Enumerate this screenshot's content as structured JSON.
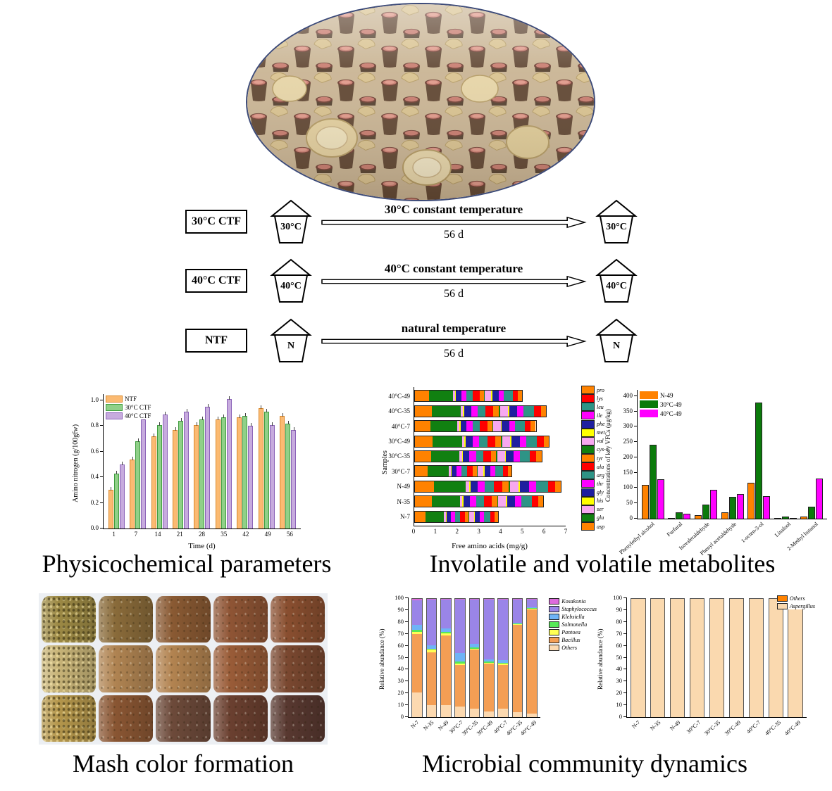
{
  "flow": {
    "rows": [
      {
        "label": "30°C CTF",
        "jar_start": "30°C",
        "arrow_top": "30°C constant temperature",
        "arrow_bottom": "56 d",
        "jar_end": "30°C"
      },
      {
        "label": "40°C CTF",
        "jar_start": "40°C",
        "arrow_top": "40°C constant temperature",
        "arrow_bottom": "56 d",
        "jar_end": "40°C"
      },
      {
        "label": "NTF",
        "jar_start": "N",
        "arrow_top": "natural temperature",
        "arrow_bottom": "56 d",
        "jar_end": "N"
      }
    ]
  },
  "sections": {
    "physicochemical": "Physicochemical parameters",
    "metabolites": "Involatile and volatile metabolites",
    "mash": "Mash color formation",
    "microbial": "Microbial community dynamics"
  },
  "mash_photos": {
    "rows": [
      [
        "#9d8a45",
        "#8a6b3a",
        "#8a5a33",
        "#8f5535",
        "#8a4f30"
      ],
      [
        "#c8b478",
        "#b08452",
        "#b28350",
        "#9a5c38",
        "#7a4830"
      ],
      [
        "#b5974c",
        "#8a5633",
        "#6d4a3a",
        "#6b4030",
        "#583830"
      ]
    ]
  },
  "chart_data": [
    {
      "id": "amino_nitrogen",
      "type": "bar",
      "title": "",
      "xlabel": "Time (d)",
      "ylabel": "Amino nitrogen (g/100gfw)",
      "ylim": [
        0,
        1.05
      ],
      "yticks": [
        "0.0",
        "0.2",
        "0.4",
        "0.6",
        "0.8",
        "1.0"
      ],
      "categories": [
        "1",
        "7",
        "14",
        "21",
        "28",
        "35",
        "42",
        "49",
        "56"
      ],
      "whiskers": true,
      "legend_position": "top-left",
      "series": [
        {
          "name": "NTF",
          "color": "#FBBA72",
          "border": "#D9882B",
          "values": [
            0.3,
            0.54,
            0.72,
            0.77,
            0.81,
            0.85,
            0.87,
            0.94,
            0.88
          ]
        },
        {
          "name": "30°C CTF",
          "color": "#90D088",
          "border": "#3F9E3F",
          "values": [
            0.43,
            0.68,
            0.81,
            0.84,
            0.85,
            0.87,
            0.88,
            0.91,
            0.82
          ]
        },
        {
          "name": "40°C CTF",
          "color": "#C7ABDE",
          "border": "#8B63B8",
          "values": [
            0.5,
            0.85,
            0.89,
            0.91,
            0.95,
            1.01,
            0.8,
            0.81,
            0.77
          ]
        }
      ]
    },
    {
      "id": "free_amino_acids",
      "type": "hstacked_bar",
      "title": "",
      "xlabel": "Free amino acids (mg/g)",
      "ylabel": "Samples",
      "xlim": [
        0,
        7
      ],
      "xticks": [
        "0",
        "1",
        "2",
        "3",
        "4",
        "5",
        "6",
        "7"
      ],
      "categories": [
        "40°C-49",
        "40°C-35",
        "40°C-7",
        "30°C-49",
        "30°C-35",
        "30°C-7",
        "N-49",
        "N-35",
        "N-7"
      ],
      "components": [
        {
          "name": "asp",
          "color": "#FF8200"
        },
        {
          "name": "glu",
          "color": "#118011"
        },
        {
          "name": "ser",
          "color": "#F7A8F0"
        },
        {
          "name": "his",
          "color": "#FFFF00"
        },
        {
          "name": "gly",
          "color": "#1F1F9F"
        },
        {
          "name": "thr",
          "color": "#FF00FF"
        },
        {
          "name": "arg",
          "color": "#2E9486"
        },
        {
          "name": "ala",
          "color": "#FF0000"
        },
        {
          "name": "tyr",
          "color": "#FF8200"
        },
        {
          "name": "cys-s",
          "color": "#118011"
        },
        {
          "name": "val",
          "color": "#F7A8F0"
        },
        {
          "name": "met",
          "color": "#FFFF00"
        },
        {
          "name": "phe",
          "color": "#1F1F9F"
        },
        {
          "name": "ile",
          "color": "#FF00FF"
        },
        {
          "name": "leu",
          "color": "#2E9486"
        },
        {
          "name": "lys",
          "color": "#FF0000"
        },
        {
          "name": "pro",
          "color": "#FF8200"
        }
      ],
      "rows": [
        [
          0.66,
          1.11,
          0.1,
          0.05,
          0.25,
          0.25,
          0.3,
          0.3,
          0.2,
          0.05,
          0.3,
          0.05,
          0.3,
          0.25,
          0.4,
          0.25,
          0.2
        ],
        [
          0.79,
          1.34,
          0.12,
          0.06,
          0.31,
          0.31,
          0.37,
          0.37,
          0.24,
          0.06,
          0.37,
          0.06,
          0.37,
          0.31,
          0.49,
          0.31,
          0.24
        ],
        [
          0.73,
          1.24,
          0.11,
          0.06,
          0.28,
          0.28,
          0.34,
          0.34,
          0.23,
          0.06,
          0.34,
          0.06,
          0.34,
          0.28,
          0.45,
          0.28,
          0.23
        ],
        [
          0.81,
          1.38,
          0.13,
          0.06,
          0.31,
          0.31,
          0.38,
          0.38,
          0.25,
          0.06,
          0.38,
          0.06,
          0.38,
          0.31,
          0.5,
          0.31,
          0.25
        ],
        [
          0.77,
          1.3,
          0.12,
          0.06,
          0.3,
          0.3,
          0.35,
          0.35,
          0.24,
          0.06,
          0.35,
          0.06,
          0.35,
          0.3,
          0.47,
          0.3,
          0.24
        ],
        [
          0.59,
          0.99,
          0.09,
          0.05,
          0.23,
          0.23,
          0.27,
          0.27,
          0.18,
          0.05,
          0.27,
          0.05,
          0.27,
          0.23,
          0.36,
          0.23,
          0.18
        ],
        [
          0.88,
          1.5,
          0.14,
          0.07,
          0.34,
          0.34,
          0.41,
          0.41,
          0.27,
          0.07,
          0.41,
          0.07,
          0.41,
          0.34,
          0.54,
          0.34,
          0.27
        ],
        [
          0.78,
          1.32,
          0.12,
          0.06,
          0.3,
          0.3,
          0.36,
          0.36,
          0.24,
          0.06,
          0.36,
          0.06,
          0.36,
          0.3,
          0.48,
          0.3,
          0.24
        ],
        [
          0.51,
          0.86,
          0.08,
          0.04,
          0.2,
          0.2,
          0.23,
          0.23,
          0.16,
          0.04,
          0.23,
          0.04,
          0.23,
          0.2,
          0.31,
          0.2,
          0.16
        ]
      ]
    },
    {
      "id": "vfc",
      "type": "bar",
      "title": "",
      "xlabel": "",
      "ylabel": "Concentrations of key VFCs (μg/kg)",
      "ylim": [
        0,
        420
      ],
      "yticks": [
        "0",
        "50",
        "100",
        "150",
        "200",
        "250",
        "300",
        "350",
        "400"
      ],
      "categories": [
        "Phenylethyl alcohol",
        "Furfural",
        "Isovaleraldehyde",
        "Phenyl acetaldehyde",
        "1-octen-3-ol",
        "Linalool",
        "2-Methyl butanol"
      ],
      "legend_position": "top-left",
      "series": [
        {
          "name": "N-49",
          "color": "#FF8200",
          "values": [
            110,
            3,
            12,
            21,
            118,
            3,
            8
          ]
        },
        {
          "name": "30°C-49",
          "color": "#0B7A0B",
          "values": [
            240,
            20,
            46,
            71,
            378,
            7,
            39
          ]
        },
        {
          "name": "40°C-49",
          "color": "#FF00FF",
          "values": [
            128,
            15,
            95,
            81,
            73,
            3,
            132
          ]
        }
      ]
    },
    {
      "id": "bacteria",
      "type": "stacked_bar",
      "title": "",
      "xlabel": "",
      "ylabel": "Relative abundance (%)",
      "ylim": [
        0,
        100
      ],
      "yticks": [
        "0",
        "10",
        "20",
        "30",
        "40",
        "50",
        "60",
        "70",
        "80",
        "90",
        "100"
      ],
      "categories": [
        "N-7",
        "N-35",
        "N-49",
        "30°C-7",
        "30°C-35",
        "30°C-49",
        "40°C-7",
        "40°C-35",
        "40°C-49"
      ],
      "legend_reverse": true,
      "series": [
        {
          "name": "Others",
          "color": "#FCD9B0",
          "italic": false,
          "values": [
            21,
            10,
            10,
            9,
            7,
            5,
            7,
            4,
            3
          ]
        },
        {
          "name": "Bacillus",
          "color": "#F49E54",
          "italic": true,
          "values": [
            49,
            45,
            59,
            35,
            50,
            40,
            37,
            74,
            88
          ]
        },
        {
          "name": "Pantoea",
          "color": "#FFFF55",
          "italic": true,
          "values": [
            2,
            2,
            2,
            1,
            1,
            1,
            1,
            0.5,
            0.5
          ]
        },
        {
          "name": "Salmonella",
          "color": "#57E857",
          "italic": true,
          "values": [
            2,
            1,
            1,
            2,
            1,
            1,
            1,
            0.5,
            0.5
          ]
        },
        {
          "name": "Klebsiella",
          "color": "#6EB4F7",
          "italic": true,
          "values": [
            4,
            3,
            3,
            7,
            3,
            2,
            2,
            1,
            1
          ]
        },
        {
          "name": "Staphylococcus",
          "color": "#9A85E8",
          "italic": true,
          "values": [
            21,
            38.5,
            24.5,
            45.5,
            37.5,
            50.5,
            51.5,
            19.5,
            6.5
          ]
        },
        {
          "name": "Kosakonia",
          "color": "#DD6BDD",
          "italic": true,
          "values": [
            1,
            0.5,
            0.5,
            0.5,
            0.5,
            0.5,
            0.5,
            0.5,
            0.5
          ]
        }
      ]
    },
    {
      "id": "fungi",
      "type": "stacked_bar",
      "title": "",
      "xlabel": "",
      "ylabel": "Relative abundance (%)",
      "ylim": [
        0,
        100
      ],
      "yticks": [
        "0",
        "10",
        "20",
        "30",
        "40",
        "50",
        "60",
        "70",
        "80",
        "90",
        "100"
      ],
      "categories": [
        "N-7",
        "N-35",
        "N-49",
        "30°C-7",
        "30°C-35",
        "30°C-49",
        "40°C-7",
        "40°C-35",
        "40°C-49"
      ],
      "legend_reverse": true,
      "series": [
        {
          "name": "Aspergillus",
          "color": "#FAD9AF",
          "italic": true,
          "values": [
            100,
            100,
            100,
            100,
            100,
            100,
            100,
            100,
            100
          ]
        },
        {
          "name": "Others",
          "color": "#FF8200",
          "italic": false,
          "values": [
            0,
            0,
            0,
            0,
            0,
            0,
            0,
            0,
            0
          ]
        }
      ]
    }
  ]
}
